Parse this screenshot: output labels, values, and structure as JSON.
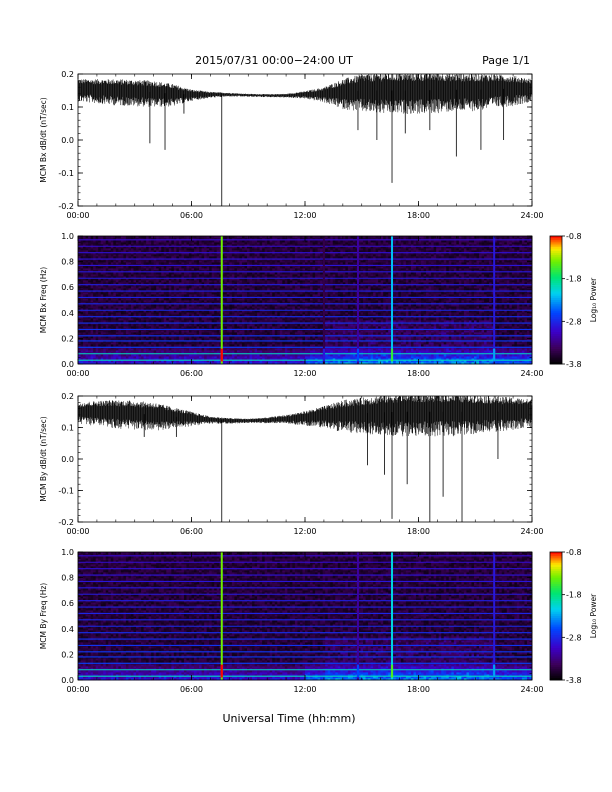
{
  "header": {
    "title": "2015/07/31  00:00−24:00 UT",
    "page": "Page 1/1"
  },
  "xaxis_label": "Universal Time (hh:mm)",
  "colorbar": {
    "label": "Log₁₀ Power",
    "ticks": [
      "-0.8",
      "-1.8",
      "-2.8",
      "-3.8"
    ]
  },
  "chart_data": [
    {
      "type": "line",
      "ylabel": "MCM Bx dB/dt (nT/sec)",
      "xlim": [
        0,
        24
      ],
      "ylim": [
        -0.2,
        0.2
      ],
      "x_ticks": [
        "00:00",
        "06:00",
        "12:00",
        "18:00",
        "24:00"
      ],
      "y_ticks": [
        "0.2",
        "0.1",
        "0.0",
        "-0.1",
        "-0.2"
      ],
      "grid": false,
      "envelope": {
        "hours": [
          0,
          2,
          4,
          5,
          6,
          7,
          8,
          9,
          10,
          11,
          12,
          13,
          14,
          15,
          16,
          17,
          18,
          19,
          20,
          21,
          22,
          23,
          24
        ],
        "center": [
          0.155,
          0.15,
          0.145,
          0.14,
          0.138,
          0.138,
          0.138,
          0.136,
          0.135,
          0.135,
          0.138,
          0.14,
          0.145,
          0.15,
          0.15,
          0.15,
          0.15,
          0.152,
          0.152,
          0.152,
          0.155,
          0.155,
          0.155
        ],
        "spread": [
          0.03,
          0.035,
          0.035,
          0.03,
          0.015,
          0.008,
          0.005,
          0.004,
          0.004,
          0.005,
          0.01,
          0.02,
          0.04,
          0.05,
          0.055,
          0.055,
          0.055,
          0.055,
          0.05,
          0.05,
          0.045,
          0.04,
          0.03
        ]
      },
      "spikes": [
        [
          3.8,
          -0.01
        ],
        [
          4.6,
          -0.03
        ],
        [
          5.6,
          0.08
        ],
        [
          7.6,
          -0.2
        ],
        [
          14.8,
          0.03
        ],
        [
          15.8,
          0.0
        ],
        [
          16.6,
          -0.13
        ],
        [
          17.3,
          0.02
        ],
        [
          18.6,
          0.03
        ],
        [
          20.0,
          -0.05
        ],
        [
          21.3,
          -0.03
        ],
        [
          22.5,
          0.0
        ]
      ]
    },
    {
      "type": "heatmap",
      "ylabel": "MCM Bx Freq (Hz)",
      "xlim": [
        0,
        24
      ],
      "ylim": [
        0,
        1.0
      ],
      "x_ticks": [
        "00:00",
        "06:00",
        "12:00",
        "18:00",
        "24:00"
      ],
      "y_ticks": [
        "1.0",
        "0.8",
        "0.6",
        "0.4",
        "0.2",
        "0.0"
      ],
      "zlim": [
        -3.8,
        -0.8
      ],
      "harmonic_freqs": [
        0.03,
        0.08,
        0.13,
        0.18,
        0.22,
        0.27,
        0.32,
        0.37,
        0.42,
        0.47,
        0.52,
        0.57,
        0.62,
        0.67,
        0.72,
        0.77,
        0.82,
        0.87,
        0.92,
        0.97
      ],
      "vertical_events": [
        [
          7.6,
          -0.8
        ],
        [
          13.0,
          -2.9
        ],
        [
          14.8,
          -2.6
        ],
        [
          16.6,
          -1.6
        ],
        [
          22.0,
          -2.3
        ]
      ]
    },
    {
      "type": "line",
      "ylabel": "MCM By dB/dt (nT/sec)",
      "xlim": [
        0,
        24
      ],
      "ylim": [
        -0.2,
        0.2
      ],
      "x_ticks": [
        "00:00",
        "06:00",
        "12:00",
        "18:00",
        "24:00"
      ],
      "y_ticks": [
        "0.2",
        "0.1",
        "0.0",
        "-0.1",
        "-0.2"
      ],
      "grid": false,
      "envelope": {
        "hours": [
          0,
          1,
          2,
          3,
          4,
          5,
          6,
          7,
          8,
          9,
          10,
          11,
          12,
          13,
          14,
          15,
          16,
          17,
          18,
          19,
          20,
          21,
          22,
          23,
          24
        ],
        "center": [
          0.15,
          0.15,
          0.148,
          0.145,
          0.14,
          0.135,
          0.13,
          0.125,
          0.122,
          0.122,
          0.124,
          0.128,
          0.132,
          0.138,
          0.142,
          0.145,
          0.148,
          0.15,
          0.15,
          0.15,
          0.15,
          0.15,
          0.15,
          0.15,
          0.15
        ],
        "spread": [
          0.03,
          0.035,
          0.04,
          0.04,
          0.04,
          0.03,
          0.02,
          0.01,
          0.008,
          0.006,
          0.008,
          0.012,
          0.02,
          0.03,
          0.045,
          0.05,
          0.055,
          0.06,
          0.06,
          0.06,
          0.06,
          0.055,
          0.05,
          0.045,
          0.04
        ]
      },
      "spikes": [
        [
          3.5,
          0.07
        ],
        [
          5.2,
          0.07
        ],
        [
          7.6,
          -0.2
        ],
        [
          15.3,
          -0.02
        ],
        [
          16.2,
          -0.05
        ],
        [
          16.6,
          -0.19
        ],
        [
          17.4,
          -0.08
        ],
        [
          18.6,
          -0.2
        ],
        [
          19.3,
          -0.12
        ],
        [
          20.3,
          -0.2
        ],
        [
          22.2,
          0.0
        ]
      ]
    },
    {
      "type": "heatmap",
      "ylabel": "MCM By Freq (Hz)",
      "xlim": [
        0,
        24
      ],
      "ylim": [
        0,
        1.0
      ],
      "x_ticks": [
        "00:00",
        "06:00",
        "12:00",
        "18:00",
        "24:00"
      ],
      "y_ticks": [
        "1.0",
        "0.8",
        "0.6",
        "0.4",
        "0.2",
        "0.0"
      ],
      "zlim": [
        -3.8,
        -0.8
      ],
      "harmonic_freqs": [
        0.03,
        0.08,
        0.13,
        0.18,
        0.22,
        0.27,
        0.32,
        0.37,
        0.42,
        0.47,
        0.52,
        0.57,
        0.62,
        0.67,
        0.72,
        0.77,
        0.82,
        0.87,
        0.92,
        0.97
      ],
      "vertical_events": [
        [
          7.6,
          -0.8
        ],
        [
          14.8,
          -2.6
        ],
        [
          16.6,
          -1.5
        ],
        [
          22.0,
          -2.3
        ]
      ]
    }
  ]
}
